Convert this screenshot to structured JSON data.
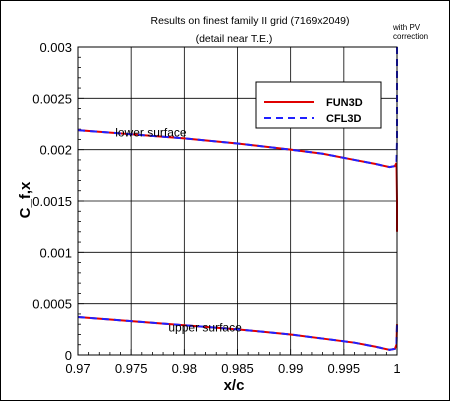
{
  "chart_data": {
    "type": "line",
    "title": "Results on finest family II grid (7169x2049)",
    "subtitle": "(detail near T.E.)",
    "corner_note": [
      "with PV",
      "correction"
    ],
    "xlabel": "x/c",
    "ylabel": "C_f,x",
    "xlim": [
      0.97,
      1.0
    ],
    "ylim": [
      0,
      0.003
    ],
    "x_ticks": [
      "0.97",
      "0.975",
      "0.98",
      "0.985",
      "0.99",
      "0.995",
      "1"
    ],
    "y_ticks": [
      "0",
      "0.0005",
      "0.001",
      "0.0015",
      "0.002",
      "0.0025",
      "0.003"
    ],
    "grid": true,
    "legend_position": "top-right",
    "annotations": [
      {
        "text": "lower surface",
        "x": 0.9735,
        "y": 0.00213
      },
      {
        "text": "upper surface",
        "x": 0.9785,
        "y": 0.00023
      }
    ],
    "series": [
      {
        "name": "FUN3D",
        "color": "#e00000",
        "style": "solid",
        "curves": [
          {
            "x": [
              0.97,
              0.975,
              0.98,
              0.985,
              0.99,
              0.993,
              0.996,
              0.998,
              0.9993,
              0.9998,
              0.99995,
              1.0,
              1.0
            ],
            "y": [
              0.00219,
              0.00215,
              0.00211,
              0.00206,
              0.002,
              0.00196,
              0.0019,
              0.00186,
              0.00183,
              0.00184,
              0.00187,
              0.0015,
              0.0012
            ]
          },
          {
            "x": [
              0.97,
              0.975,
              0.98,
              0.985,
              0.99,
              0.993,
              0.996,
              0.998,
              0.9993,
              0.9998,
              0.99995,
              1.0
            ],
            "y": [
              0.00037,
              0.00033,
              0.00029,
              0.00025,
              0.0002,
              0.00016,
              0.00012,
              8e-05,
              5e-05,
              6e-05,
              0.0001,
              0.0003
            ]
          }
        ]
      },
      {
        "name": "CFL3D",
        "color": "#2020ff",
        "style": "dashed",
        "curves": [
          {
            "x": [
              0.97,
              0.975,
              0.98,
              0.985,
              0.99,
              0.993,
              0.996,
              0.998,
              0.9993,
              0.9998,
              0.99995,
              1.0,
              1.0
            ],
            "y": [
              0.00219,
              0.00215,
              0.00211,
              0.00206,
              0.002,
              0.00196,
              0.0019,
              0.00186,
              0.00183,
              0.00184,
              0.00187,
              0.0021,
              0.003
            ]
          },
          {
            "x": [
              0.97,
              0.975,
              0.98,
              0.985,
              0.99,
              0.993,
              0.996,
              0.998,
              0.9993,
              0.9998,
              0.99995,
              1.0
            ],
            "y": [
              0.00037,
              0.00033,
              0.00029,
              0.00025,
              0.0002,
              0.00016,
              0.00012,
              8e-05,
              5e-05,
              6e-05,
              0.0001,
              0.0003
            ]
          }
        ]
      }
    ]
  }
}
